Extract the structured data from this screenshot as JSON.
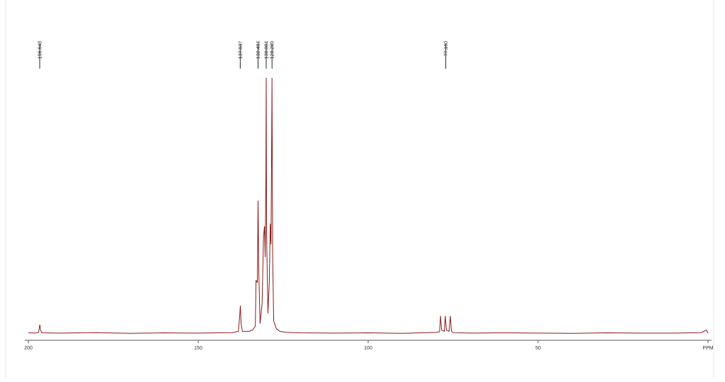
{
  "chart_data": {
    "type": "line",
    "x": [
      200,
      198,
      197,
      196.8,
      196.6,
      196.4,
      196,
      190,
      180,
      170,
      160,
      150,
      140,
      138.2,
      137.8,
      137.6,
      137.4,
      137,
      135,
      134,
      133.2,
      133,
      132.6,
      132.4,
      132.2,
      131.8,
      131.2,
      130.8,
      130.5,
      130.3,
      130.1,
      130.0,
      129.9,
      129.5,
      129.1,
      128.8,
      128.6,
      128.4,
      128.3,
      128.1,
      127.8,
      127,
      126,
      124,
      120,
      110,
      100,
      90,
      80,
      79.0,
      78.7,
      78.4,
      77.6,
      77.3,
      77.0,
      76.2,
      75.8,
      75.5,
      75,
      70,
      60,
      50,
      40,
      30,
      20,
      10,
      2,
      0.5,
      0
    ],
    "series": [
      {
        "color": "#8b1a1a",
        "values": [
          0.5,
          0.3,
          0.6,
          2,
          3.6,
          1.5,
          0.4,
          0.3,
          0.5,
          0.2,
          0.4,
          0.3,
          0.5,
          1,
          7,
          11,
          4,
          1,
          1,
          1.5,
          3,
          21,
          20,
          52,
          25,
          4,
          12,
          38,
          42,
          30,
          60,
          100,
          40,
          8,
          20,
          43,
          35,
          74,
          100,
          30,
          5,
          2,
          1,
          0.6,
          0.4,
          0.3,
          0.4,
          0.2,
          0.6,
          0.8,
          7,
          1.5,
          1,
          7,
          1.5,
          1,
          7,
          1,
          0.5,
          0.3,
          0.4,
          0.3,
          0.2,
          0.4,
          0.3,
          0.3,
          0.5,
          1.5,
          0.3
        ]
      }
    ],
    "xlim": [
      200,
      0
    ],
    "ylim": [
      0,
      100
    ],
    "xticks": [
      200,
      150,
      100,
      50,
      {
        "value": 0,
        "label": "PPM"
      }
    ],
    "peaks": [
      196.648,
      137.637,
      132.404,
      130.004,
      128.289,
      {
        "value": 77.16,
        "label": "77.160"
      }
    ]
  }
}
